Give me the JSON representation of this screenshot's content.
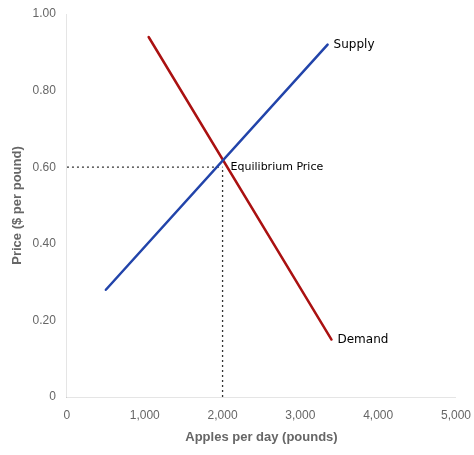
{
  "chart_data": {
    "type": "line",
    "xlabel": "Apples per day (pounds)",
    "ylabel": "Price ($ per pound)",
    "xlim": [
      0,
      5000
    ],
    "ylim": [
      0,
      1.0
    ],
    "xticks": [
      0,
      {
        "value": 1000,
        "label": "1,000"
      },
      {
        "value": 2000,
        "label": "2,000"
      },
      {
        "value": 3000,
        "label": "3,000"
      },
      {
        "value": 4000,
        "label": "4,000"
      },
      {
        "value": 5000,
        "label": "5,000"
      }
    ],
    "yticks": [
      0,
      {
        "value": 0.2,
        "label": "0.20"
      },
      {
        "value": 0.4,
        "label": "0.40"
      },
      {
        "value": 0.6,
        "label": "0.60"
      },
      {
        "value": 0.8,
        "label": "0.80"
      },
      {
        "value": 1.0,
        "label": "1.00"
      }
    ],
    "grid": false,
    "series": [
      {
        "name": "Supply",
        "color": "#2244aa",
        "x": [
          500,
          3350
        ],
        "values": [
          0.28,
          0.92
        ]
      },
      {
        "name": "Demand",
        "color": "#aa1111",
        "x": [
          1050,
          3400
        ],
        "values": [
          0.94,
          0.15
        ]
      }
    ],
    "equilibrium": {
      "x": 2000,
      "y": 0.6,
      "label": "Equilibrium Price",
      "color": "#333333",
      "line_style": "dotted"
    }
  }
}
